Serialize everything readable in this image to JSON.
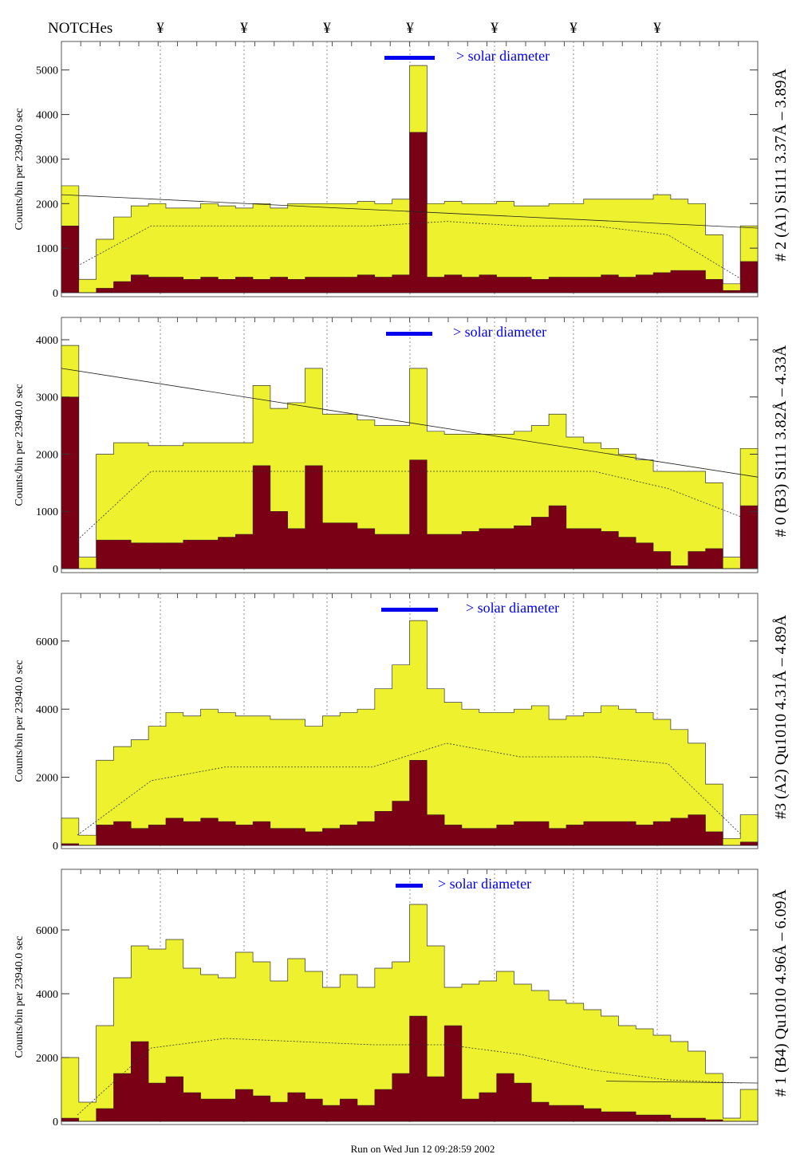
{
  "header": {
    "notches_label": "NOTCHes",
    "notch_marker": "¥",
    "notch_count": 7
  },
  "footer": {
    "run_text": "Run on Wed Jun 12 09:28:59 2002"
  },
  "colors": {
    "total": "#eef22e",
    "line": "#7a0015",
    "solar_bar": "#0000ee",
    "solar_text": "#0000ee"
  },
  "chart_data": [
    {
      "type": "area",
      "title": "# 2 (A1) Si111  3.37Å – 3.89Å",
      "ylabel": "Counts/bin per  23940.0 sec",
      "solar_label": "> solar diameter",
      "ylim": [
        0,
        5640
      ],
      "yticks": [
        0,
        1000,
        2000,
        3000,
        4000,
        5000
      ],
      "series": [
        {
          "name": "total",
          "values": [
            2400,
            300,
            1200,
            1700,
            1950,
            2000,
            1900,
            1900,
            2000,
            1950,
            1900,
            2000,
            1900,
            2000,
            2000,
            2000,
            2000,
            2050,
            2000,
            2100,
            5100,
            2000,
            2050,
            2000,
            2000,
            2050,
            1950,
            1950,
            2000,
            2000,
            2100,
            2100,
            2100,
            2100,
            2200,
            2100,
            2000,
            1300,
            200,
            1500
          ]
        },
        {
          "name": "line",
          "values": [
            1500,
            0,
            100,
            250,
            400,
            350,
            350,
            300,
            350,
            300,
            350,
            300,
            350,
            300,
            350,
            350,
            350,
            400,
            350,
            400,
            3600,
            350,
            400,
            350,
            400,
            350,
            350,
            300,
            350,
            350,
            350,
            400,
            350,
            400,
            450,
            500,
            500,
            300,
            50,
            700
          ]
        }
      ],
      "fit_line": [
        2200,
        1450
      ],
      "dashed_level": [
        600,
        1500,
        1500,
        1500,
        1500,
        1600,
        1500,
        1500,
        1300,
        300
      ]
    },
    {
      "type": "area",
      "title": "# 0 (B3) Si111  3.82Å – 4.33Å",
      "ylabel": "Counts/bin per  23940.0 sec",
      "solar_label": "> solar diameter",
      "ylim": [
        0,
        4390
      ],
      "yticks": [
        0,
        1000,
        2000,
        3000,
        4000
      ],
      "series": [
        {
          "name": "total",
          "values": [
            3900,
            200,
            2000,
            2200,
            2200,
            2150,
            2150,
            2200,
            2200,
            2200,
            2200,
            3200,
            2800,
            2900,
            3500,
            2700,
            2700,
            2600,
            2500,
            2500,
            3500,
            2400,
            2350,
            2350,
            2350,
            2350,
            2400,
            2500,
            2700,
            2300,
            2200,
            2100,
            2000,
            1900,
            1700,
            1700,
            1700,
            1500,
            200,
            2100
          ]
        },
        {
          "name": "line",
          "values": [
            3000,
            0,
            500,
            500,
            450,
            450,
            450,
            500,
            500,
            550,
            600,
            1800,
            1000,
            700,
            1800,
            800,
            800,
            700,
            600,
            600,
            1900,
            600,
            600,
            650,
            700,
            700,
            750,
            900,
            1100,
            700,
            700,
            650,
            550,
            450,
            300,
            50,
            300,
            350,
            0,
            1100
          ]
        }
      ],
      "fit_line": [
        3500,
        1600
      ],
      "dashed_level": [
        500,
        1700,
        1700,
        1700,
        1700,
        1700,
        1700,
        1700,
        1400,
        900
      ]
    },
    {
      "type": "area",
      "title": "#3 (A2) Qu1010  4.31Å – 4.89Å",
      "ylabel": "Counts/bin per  23940.0 sec",
      "solar_label": "> solar diameter",
      "ylim": [
        0,
        7400
      ],
      "yticks": [
        0,
        2000,
        4000,
        6000
      ],
      "series": [
        {
          "name": "total",
          "values": [
            800,
            300,
            2500,
            2900,
            3100,
            3500,
            3900,
            3800,
            4000,
            3900,
            3800,
            3800,
            3700,
            3700,
            3500,
            3800,
            3900,
            4000,
            4600,
            5300,
            6600,
            4600,
            4200,
            4000,
            3900,
            3900,
            4000,
            4100,
            3700,
            3800,
            3900,
            4100,
            4000,
            3900,
            3700,
            3400,
            3000,
            1800,
            200,
            900
          ]
        },
        {
          "name": "line",
          "values": [
            50,
            0,
            600,
            700,
            500,
            600,
            800,
            700,
            800,
            700,
            600,
            700,
            500,
            500,
            400,
            500,
            600,
            700,
            1000,
            1300,
            2500,
            900,
            600,
            500,
            500,
            600,
            700,
            700,
            500,
            600,
            700,
            700,
            700,
            600,
            700,
            800,
            900,
            400,
            0,
            100
          ]
        }
      ],
      "fit_line": null,
      "dashed_level": [
        300,
        1900,
        2300,
        2300,
        2300,
        3000,
        2600,
        2600,
        2400,
        300
      ]
    },
    {
      "type": "area",
      "title": "# 1 (B4) Qu1010 4.96Å – 6.09Å",
      "ylabel": "Counts/bin per  23940.0 sec",
      "solar_label": "> solar diameter",
      "ylim": [
        0,
        7900
      ],
      "yticks": [
        0,
        2000,
        4000,
        6000
      ],
      "series": [
        {
          "name": "total",
          "values": [
            2000,
            600,
            3000,
            4500,
            5500,
            5400,
            5700,
            4800,
            4600,
            4500,
            5300,
            5000,
            4400,
            5100,
            4700,
            4200,
            4600,
            4200,
            4800,
            5000,
            6800,
            5500,
            4200,
            4300,
            4400,
            4700,
            4300,
            4100,
            3800,
            3700,
            3500,
            3300,
            3000,
            2900,
            2700,
            2500,
            2200,
            1500,
            100,
            1000
          ]
        },
        {
          "name": "line",
          "values": [
            100,
            0,
            400,
            1500,
            2500,
            1200,
            1400,
            900,
            700,
            700,
            1000,
            800,
            600,
            900,
            700,
            500,
            700,
            500,
            1000,
            1500,
            3300,
            1400,
            3000,
            700,
            900,
            1500,
            1200,
            600,
            500,
            500,
            400,
            300,
            300,
            200,
            200,
            100,
            100,
            50,
            0,
            0
          ]
        }
      ],
      "fit_line": [
        null,
        1200
      ],
      "dashed_level": [
        200,
        2300,
        2600,
        2500,
        2400,
        2400,
        2100,
        1600,
        1300,
        1200
      ]
    }
  ]
}
